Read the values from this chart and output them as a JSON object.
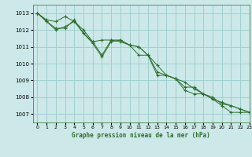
{
  "title": "Graphe pression niveau de la mer (hPa)",
  "background_color": "#cce8e8",
  "grid_color": "#99cccc",
  "line_color": "#2d6e2d",
  "xlim": [
    -0.5,
    23
  ],
  "ylim": [
    1006.5,
    1013.5
  ],
  "yticks": [
    1007,
    1008,
    1009,
    1010,
    1011,
    1012,
    1013
  ],
  "xticks": [
    0,
    1,
    2,
    3,
    4,
    5,
    6,
    7,
    8,
    9,
    10,
    11,
    12,
    13,
    14,
    15,
    16,
    17,
    18,
    19,
    20,
    21,
    22,
    23
  ],
  "series": [
    [
      1013.0,
      1012.6,
      1012.5,
      1012.8,
      1012.5,
      1012.0,
      1011.3,
      1011.4,
      1011.4,
      1011.4,
      1011.1,
      1011.0,
      1010.5,
      1009.3,
      1009.3,
      1009.1,
      1008.4,
      1008.2,
      1008.2,
      1007.9,
      1007.5,
      1007.1,
      1007.1,
      1007.1
    ],
    [
      1013.0,
      1012.5,
      1012.1,
      1012.1,
      1012.6,
      1011.8,
      1011.3,
      1010.5,
      1011.4,
      1011.3,
      1011.1,
      1010.5,
      1010.5,
      1009.5,
      1009.3,
      1009.1,
      1008.6,
      1008.6,
      1008.2,
      1008.0,
      1007.6,
      1007.5,
      1007.3,
      1007.1
    ],
    [
      1013.0,
      1012.5,
      1012.0,
      1012.2,
      1012.5,
      1011.8,
      1011.2,
      1010.4,
      1011.3,
      1011.4,
      1011.1,
      1011.0,
      1010.5,
      1009.9,
      1009.3,
      1009.1,
      1008.9,
      1008.5,
      1008.2,
      1007.9,
      1007.7,
      1007.5,
      1007.3,
      1007.1
    ]
  ]
}
